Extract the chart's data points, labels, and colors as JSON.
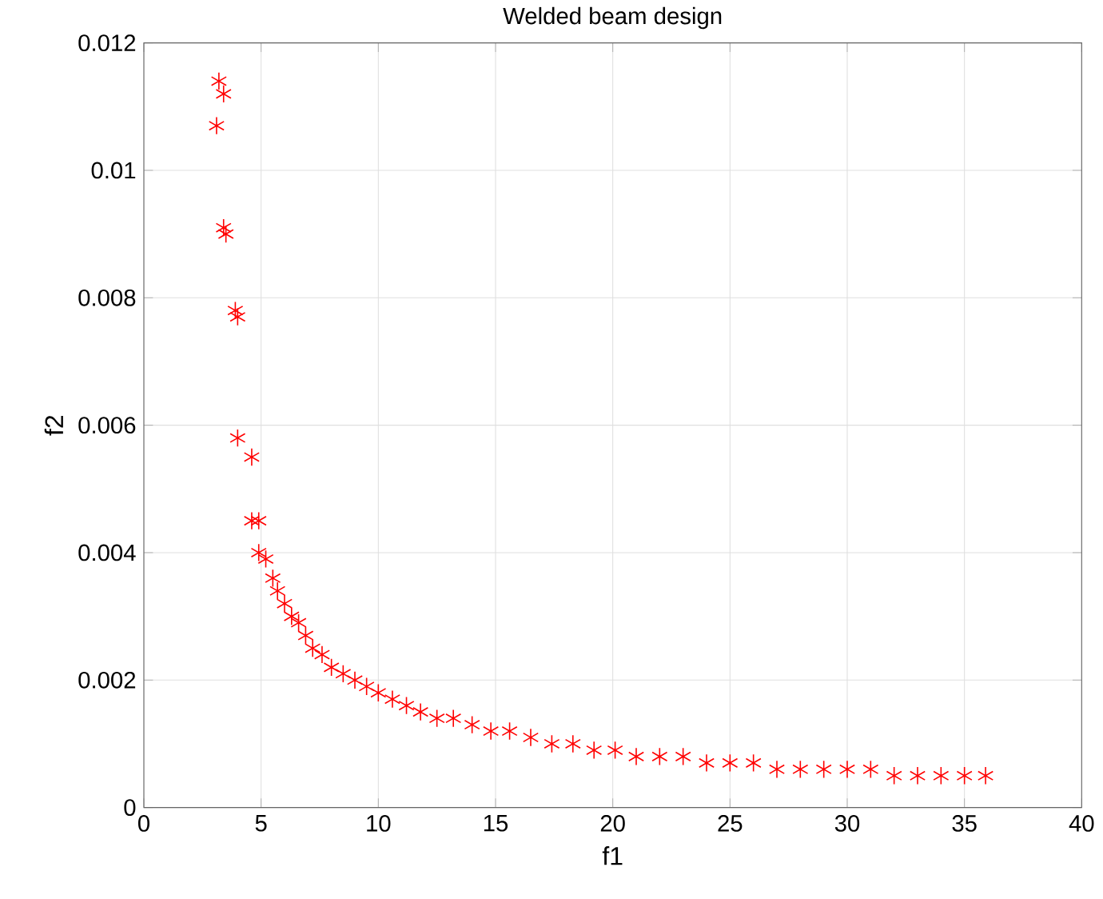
{
  "chart_data": {
    "type": "scatter",
    "title": "Welded beam design",
    "xlabel": "f1",
    "ylabel": "f2",
    "xlim": [
      0,
      40
    ],
    "xticks": [
      0,
      5,
      10,
      15,
      20,
      25,
      30,
      35,
      40
    ],
    "ylim": [
      0,
      0.012
    ],
    "yticks": [
      0,
      0.002,
      0.004,
      0.006,
      0.008,
      0.01,
      0.012
    ],
    "grid": true,
    "marker": "cross",
    "series": [
      {
        "color": "#ff0000",
        "x": [
          3.2,
          3.4,
          3.1,
          3.4,
          3.5,
          3.9,
          4.0,
          4.0,
          4.6,
          4.6,
          4.9,
          4.9,
          5.2,
          5.5,
          5.7,
          6.0,
          6.3,
          6.6,
          6.9,
          7.2,
          7.6,
          8.0,
          8.5,
          9.0,
          9.5,
          10.0,
          10.6,
          11.2,
          11.8,
          12.5,
          13.2,
          14.0,
          14.8,
          15.6,
          16.5,
          17.4,
          18.3,
          19.2,
          20.1,
          21.0,
          22.0,
          23.0,
          24.0,
          25.0,
          26.0,
          27.0,
          28.0,
          29.0,
          30.0,
          31.0,
          32.0,
          33.0,
          34.0,
          35.0,
          35.9
        ],
        "values": [
          0.0114,
          0.0112,
          0.0107,
          0.0091,
          0.009,
          0.0078,
          0.0077,
          0.0058,
          0.0055,
          0.0045,
          0.0045,
          0.004,
          0.0039,
          0.0036,
          0.0034,
          0.0032,
          0.003,
          0.0029,
          0.0027,
          0.0025,
          0.0024,
          0.0022,
          0.0021,
          0.002,
          0.0019,
          0.0018,
          0.0017,
          0.0016,
          0.0015,
          0.0014,
          0.0014,
          0.0013,
          0.0012,
          0.0012,
          0.0011,
          0.001,
          0.001,
          0.0009,
          0.0009,
          0.0008,
          0.0008,
          0.0008,
          0.0007,
          0.0007,
          0.0007,
          0.0006,
          0.0006,
          0.0006,
          0.0006,
          0.0006,
          0.0005,
          0.0005,
          0.0005,
          0.0005,
          0.0005
        ]
      }
    ]
  }
}
